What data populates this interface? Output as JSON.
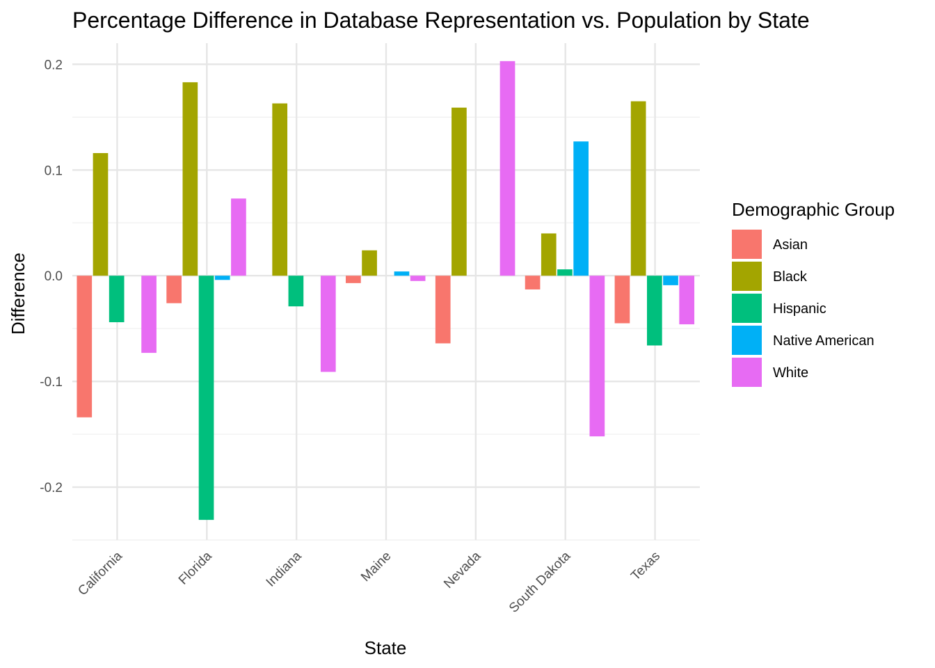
{
  "chart_data": {
    "type": "bar",
    "title": "Percentage Difference in Database Representation vs. Population by State",
    "xlabel": "State",
    "ylabel": "Difference",
    "categories": [
      "California",
      "Florida",
      "Indiana",
      "Maine",
      "Nevada",
      "South Dakota",
      "Texas"
    ],
    "ylim": [
      -0.25,
      0.22
    ],
    "yticks": [
      -0.2,
      -0.1,
      0.0,
      0.1,
      0.2
    ],
    "ytick_labels": [
      "-0.2",
      "-0.1",
      "0.0",
      "0.1",
      "0.2"
    ],
    "grid": true,
    "legend": {
      "title": "Demographic Group",
      "position": "right"
    },
    "series": [
      {
        "name": "Asian",
        "color": "#F8766D",
        "values": [
          -0.134,
          -0.026,
          null,
          -0.007,
          -0.064,
          -0.013,
          -0.045
        ]
      },
      {
        "name": "Black",
        "color": "#A3A500",
        "values": [
          0.116,
          0.183,
          0.163,
          0.024,
          0.159,
          0.04,
          0.165
        ]
      },
      {
        "name": "Hispanic",
        "color": "#00BF7D",
        "values": [
          -0.044,
          -0.231,
          -0.029,
          null,
          null,
          0.006,
          -0.066
        ]
      },
      {
        "name": "Native American",
        "color": "#00B0F6",
        "values": [
          null,
          -0.004,
          null,
          0.004,
          null,
          0.127,
          -0.009
        ]
      },
      {
        "name": "White",
        "color": "#E76BF3",
        "values": [
          -0.073,
          0.073,
          -0.091,
          -0.005,
          0.203,
          -0.152,
          -0.046
        ]
      }
    ]
  }
}
